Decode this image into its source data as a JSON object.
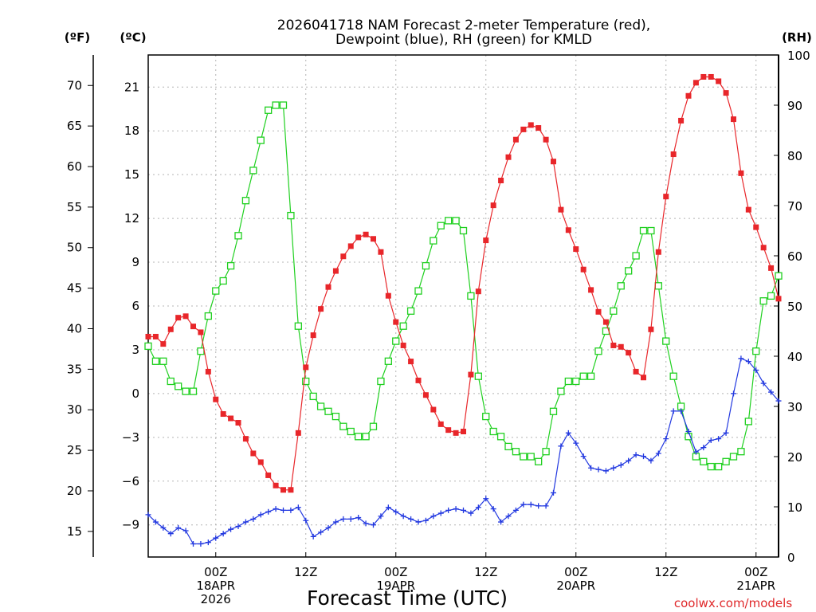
{
  "chart_data": {
    "type": "line",
    "title": [
      "2026041718 NAM Forecast 2-meter Temperature (red),",
      "Dewpoint (blue), RH (green) for KMLD"
    ],
    "xlabel": "Forecast Time (UTC)",
    "credit": "coolwx.com/models",
    "axes": {
      "f_label": "(ºF)",
      "c_label": "(ºC)",
      "rh_label": "(RH)",
      "f_ticks": [
        "15",
        "20",
        "25",
        "30",
        "35",
        "40",
        "45",
        "50",
        "55",
        "60",
        "65",
        "70"
      ],
      "c_ticks": [
        "-9",
        "-6",
        "-3",
        "0",
        "3",
        "6",
        "9",
        "12",
        "15",
        "18",
        "21"
      ],
      "rh_ticks": [
        "0",
        "10",
        "20",
        "30",
        "40",
        "50",
        "60",
        "70",
        "80",
        "90",
        "100"
      ],
      "c_range": [
        -11.2,
        23.2
      ],
      "rh_range": [
        0,
        100
      ],
      "x_range_hours": [
        -3,
        81
      ]
    },
    "x_ticks": [
      {
        "hour": 6,
        "lines": [
          "00Z",
          "18APR",
          "2026"
        ]
      },
      {
        "hour": 18,
        "lines": [
          "12Z"
        ]
      },
      {
        "hour": 30,
        "lines": [
          "00Z",
          "19APR"
        ]
      },
      {
        "hour": 42,
        "lines": [
          "12Z"
        ]
      },
      {
        "hour": 54,
        "lines": [
          "00Z",
          "20APR"
        ]
      },
      {
        "hour": 66,
        "lines": [
          "12Z"
        ]
      },
      {
        "hour": 78,
        "lines": [
          "00Z",
          "21APR"
        ]
      }
    ],
    "x_hours": [
      -3,
      -2,
      -1,
      0,
      1,
      2,
      3,
      4,
      5,
      6,
      7,
      8,
      9,
      10,
      11,
      12,
      13,
      14,
      15,
      16,
      17,
      18,
      19,
      20,
      21,
      22,
      23,
      24,
      25,
      26,
      27,
      28,
      29,
      30,
      31,
      32,
      33,
      34,
      35,
      36,
      37,
      38,
      39,
      40,
      41,
      42,
      43,
      44,
      45,
      46,
      47,
      48,
      49,
      50,
      51,
      52,
      53,
      54,
      55,
      56,
      57,
      58,
      59,
      60,
      61,
      62,
      63,
      64,
      65,
      66,
      67,
      68,
      69,
      70,
      71,
      72,
      73,
      74,
      75,
      76,
      77,
      78,
      79,
      80,
      81
    ],
    "series": [
      {
        "name": "Temperature (°C)",
        "color": "#e8262a",
        "marker": "filled-square",
        "axis": "celsius",
        "values": [
          3.9,
          3.9,
          3.4,
          4.4,
          5.2,
          5.3,
          4.6,
          4.2,
          1.5,
          -0.4,
          -1.4,
          -1.7,
          -2.0,
          -3.1,
          -4.1,
          -4.7,
          -5.6,
          -6.3,
          -6.6,
          -6.6,
          -2.7,
          1.8,
          4.0,
          5.8,
          7.3,
          8.4,
          9.4,
          10.1,
          10.7,
          10.9,
          10.6,
          9.7,
          6.7,
          4.9,
          3.3,
          2.2,
          0.9,
          -0.1,
          -1.1,
          -2.1,
          -2.5,
          -2.7,
          -2.6,
          1.3,
          7.0,
          10.5,
          12.9,
          14.6,
          16.2,
          17.4,
          18.1,
          18.4,
          18.2,
          17.4,
          15.9,
          12.6,
          11.2,
          9.9,
          8.5,
          7.1,
          5.6,
          4.9,
          3.3,
          3.2,
          2.8,
          1.5,
          1.1,
          4.4,
          9.7,
          13.5,
          16.4,
          18.7,
          20.4,
          21.3,
          21.7,
          21.7,
          21.4,
          20.6,
          18.8,
          15.1,
          12.6,
          11.4,
          10.0,
          8.6,
          6.5
        ]
      },
      {
        "name": "Dewpoint (°C)",
        "color": "#2238e0",
        "marker": "plus",
        "axis": "celsius",
        "values": [
          -8.3,
          -8.8,
          -9.2,
          -9.6,
          -9.2,
          -9.4,
          -10.3,
          -10.3,
          -10.2,
          -9.9,
          -9.6,
          -9.3,
          -9.1,
          -8.8,
          -8.6,
          -8.3,
          -8.1,
          -7.9,
          -8.0,
          -8.0,
          -7.8,
          -8.7,
          -9.8,
          -9.5,
          -9.2,
          -8.8,
          -8.6,
          -8.6,
          -8.5,
          -8.9,
          -9.0,
          -8.4,
          -7.8,
          -8.1,
          -8.4,
          -8.6,
          -8.8,
          -8.7,
          -8.4,
          -8.2,
          -8.0,
          -7.9,
          -8.0,
          -8.2,
          -7.8,
          -7.2,
          -7.9,
          -8.8,
          -8.4,
          -8.0,
          -7.6,
          -7.6,
          -7.7,
          -7.7,
          -6.8,
          -3.6,
          -2.7,
          -3.4,
          -4.3,
          -5.1,
          -5.2,
          -5.3,
          -5.1,
          -4.9,
          -4.6,
          -4.2,
          -4.3,
          -4.6,
          -4.1,
          -3.1,
          -1.2,
          -1.2,
          -2.6,
          -4.0,
          -3.7,
          -3.2,
          -3.1,
          -2.7,
          0.0,
          2.4,
          2.2,
          1.6,
          0.7,
          0.1,
          -0.5
        ]
      },
      {
        "name": "RH (%)",
        "color": "#1fd01f",
        "marker": "open-square",
        "axis": "rh",
        "values": [
          42,
          39,
          39,
          35,
          34,
          33,
          33,
          41,
          48,
          53,
          55,
          58,
          64,
          71,
          77,
          83,
          89,
          90,
          90,
          68,
          46,
          35,
          32,
          30,
          29,
          28,
          26,
          25,
          24,
          24,
          26,
          35,
          39,
          43,
          46,
          49,
          53,
          58,
          63,
          66,
          67,
          67,
          65,
          52,
          36,
          28,
          25,
          24,
          22,
          21,
          20,
          20,
          19,
          21,
          29,
          33,
          35,
          35,
          36,
          36,
          41,
          45,
          49,
          54,
          57,
          60,
          65,
          65,
          54,
          43,
          36,
          30,
          24,
          20,
          19,
          18,
          18,
          19,
          20,
          21,
          27,
          41,
          51,
          52,
          56
        ]
      }
    ]
  }
}
